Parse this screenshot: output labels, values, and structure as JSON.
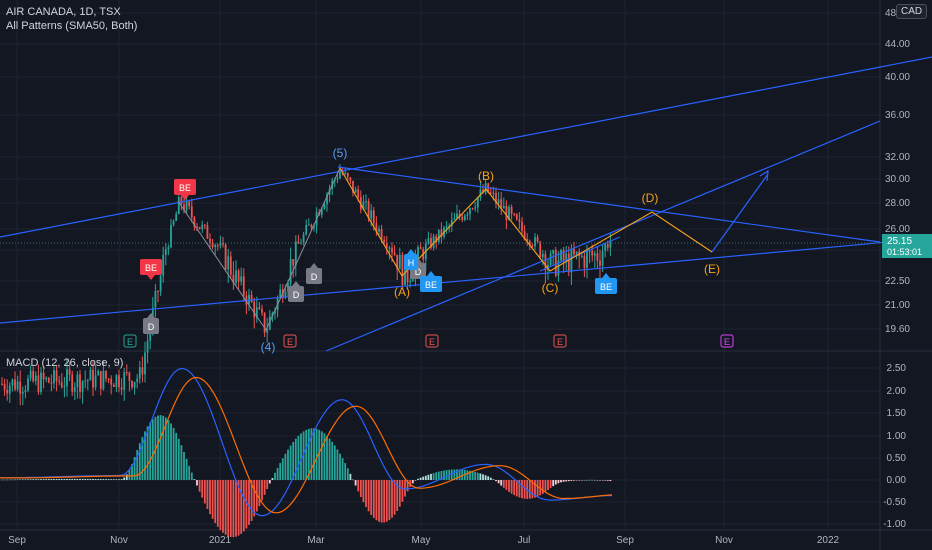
{
  "header": {
    "title": "AIR CANADA, 1D, TSX",
    "indicator": "All Patterns (SMA50, Both)",
    "macd_label": "MACD (12, 26, close, 9)",
    "currency": "CAD"
  },
  "price_axis": {
    "labels": [
      "48.00",
      "44.00",
      "40.00",
      "36.00",
      "32.00",
      "30.00",
      "28.00",
      "26.00",
      "24.00",
      "22.50",
      "21.00",
      "19.60"
    ],
    "last_price": "25.15",
    "countdown": "01:53:01"
  },
  "macd_axis": {
    "labels": [
      "2.50",
      "2.00",
      "1.50",
      "1.00",
      "0.50",
      "0.00",
      "-0.50",
      "-1.00"
    ]
  },
  "time_axis": {
    "labels": [
      "Sep",
      "Nov",
      "2021",
      "Mar",
      "May",
      "Jul",
      "Sep",
      "Nov",
      "2022"
    ]
  },
  "wave_labels": {
    "w5": "(5)",
    "w4": "(4)",
    "wA": "(A)",
    "wB": "(B)",
    "wC": "(C)",
    "wD": "(D)",
    "wE": "(E)"
  },
  "pattern_markers": {
    "be": "BE",
    "d": "D",
    "h": "H",
    "e": "E"
  },
  "colors": {
    "background": "#131722",
    "grid": "#1f2330",
    "up": "#26a69a",
    "down": "#ef5350",
    "trend_line": "#2962ff",
    "wave_orange": "#f7a21b",
    "wave_blue": "#5b9cf6",
    "macd_line": "#2962ff",
    "signal_line": "#ff6d00",
    "purple": "#e040fb"
  },
  "chart_data": {
    "type": "candlestick",
    "symbol": "AIR CANADA",
    "timeframe": "1D",
    "last_price": 25.15,
    "price_ylim": [
      19.0,
      48.0
    ],
    "macd_ylim": [
      -1.1,
      2.7
    ],
    "price_path_keypoints": [
      {
        "x": "Sep 2020",
        "close": 16.4
      },
      {
        "x": "Nov 2020",
        "close": 16.8
      },
      {
        "x": "early Dec 2020",
        "close": 28.2
      },
      {
        "x": "late Jan 2021",
        "close": 19.6
      },
      {
        "x": "late Mar 2021",
        "close": 30.8
      },
      {
        "x": "late Apr 2021",
        "close": 22.6
      },
      {
        "x": "early Jun 2021",
        "close": 29.1
      },
      {
        "x": "mid Jul 2021",
        "close": 23.3
      },
      {
        "x": "mid Aug 2021",
        "close": 23.8
      },
      {
        "x": "late Aug 2021",
        "close": 25.15
      }
    ],
    "projection": [
      {
        "label": "(D)",
        "x": "late Sep 2021",
        "value": 27.4
      },
      {
        "label": "(E)",
        "x": "late Oct 2021",
        "value": 24.0
      }
    ],
    "macd_keypoints": [
      {
        "x": "Sep 2020",
        "macd": 0.05
      },
      {
        "x": "early Dec 2020",
        "macd": 2.5
      },
      {
        "x": "late Jan 2021",
        "macd": -0.8
      },
      {
        "x": "late Mar 2021",
        "macd": 1.8
      },
      {
        "x": "late Apr 2021",
        "macd": -0.2
      },
      {
        "x": "early Jun 2021",
        "macd": 0.35
      },
      {
        "x": "mid Jul 2021",
        "macd": -0.45
      },
      {
        "x": "late Aug 2021",
        "macd": -0.35
      }
    ],
    "grid": true
  }
}
